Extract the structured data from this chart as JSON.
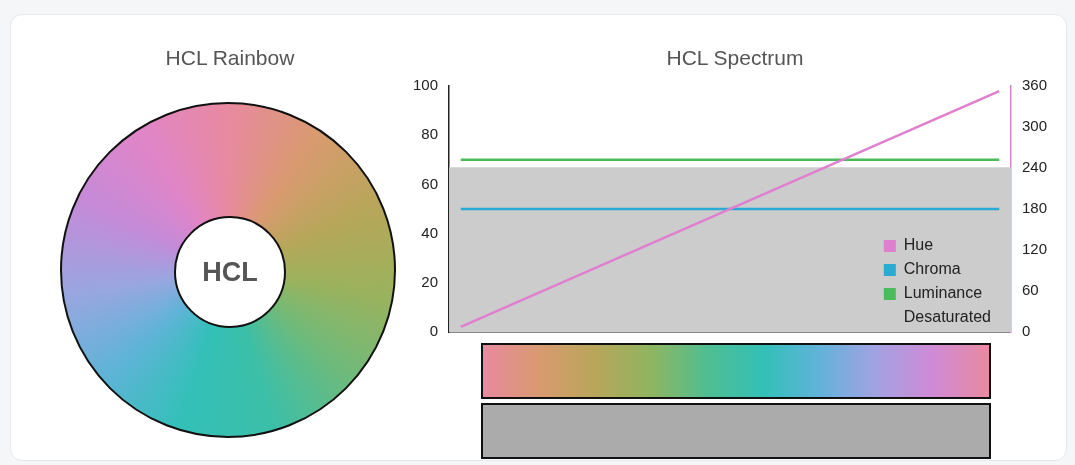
{
  "chart_data": [
    {
      "type": "other",
      "title": "HCL Rainbow",
      "annotations": [
        "HCL"
      ]
    },
    {
      "type": "line",
      "title": "HCL Spectrum",
      "categories": [
        null,
        null,
        null,
        null,
        null,
        null,
        null,
        null,
        null,
        null,
        null,
        null,
        null,
        null,
        null,
        null,
        null,
        null,
        null,
        null,
        null,
        null,
        null,
        null
      ],
      "series": [
        {
          "name": "Hue",
          "color": "#e07fd0",
          "values": [
            7.5,
            22.5,
            37.5,
            52.5,
            67.5,
            82.5,
            97.5,
            112.5,
            127.5,
            142.5,
            157.5,
            172.5,
            187.5,
            202.5,
            217.5,
            232.5,
            247.5,
            262.5,
            277.5,
            292.5,
            307.5,
            322.5,
            337.5,
            352.5
          ],
          "axis": "y2"
        },
        {
          "name": "Chroma",
          "color": "#29abd4",
          "values": [
            50,
            50,
            50,
            50,
            50,
            50,
            50,
            50,
            50,
            50,
            50,
            50,
            50,
            50,
            50,
            50,
            50,
            50,
            50,
            50,
            50,
            50,
            50,
            50
          ]
        },
        {
          "name": "Luminance",
          "color": "#4cbb5c",
          "values": [
            70,
            70,
            70,
            70,
            70,
            70,
            70,
            70,
            70,
            70,
            70,
            70,
            70,
            70,
            70,
            70,
            70,
            70,
            70,
            70,
            70,
            70,
            70,
            70
          ]
        }
      ],
      "bands": [
        {
          "axis": "y",
          "from": 0,
          "to": 67,
          "label": "Desaturated",
          "color": "#cccccc"
        }
      ],
      "ylim": [
        0,
        100
      ],
      "yticks": [
        0,
        20,
        40,
        60,
        80,
        100
      ],
      "y2lim": [
        0,
        360
      ],
      "y2ticks": [
        0,
        60,
        120,
        180,
        240,
        300,
        360
      ],
      "legend": "bottom right",
      "grid": false,
      "tick_labels": "y",
      "marker": "none"
    }
  ]
}
